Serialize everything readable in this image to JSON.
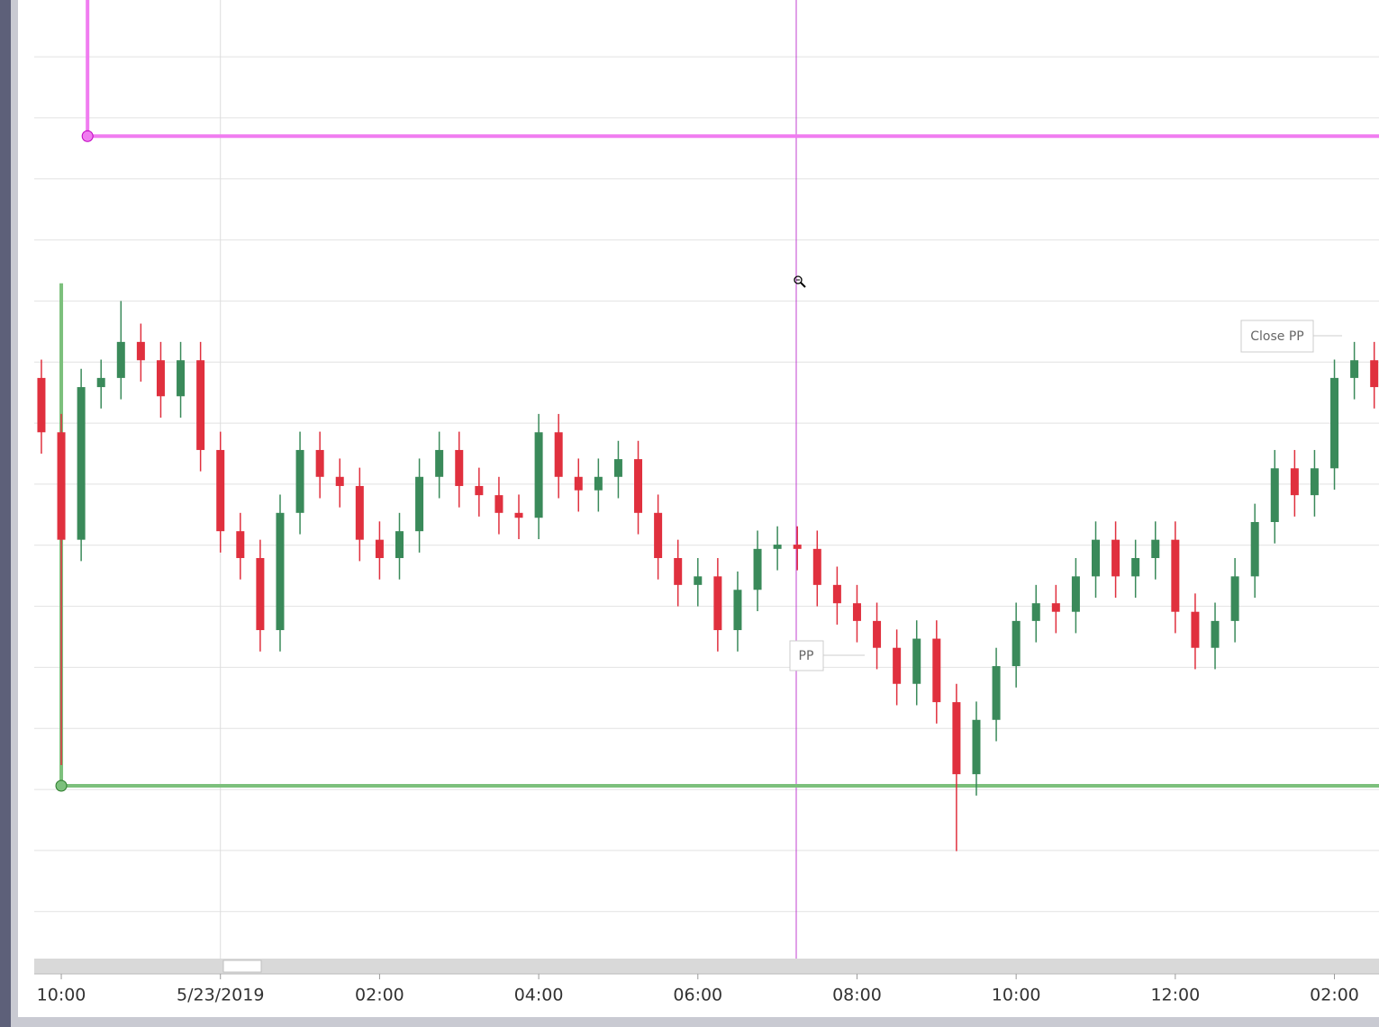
{
  "chart_data": {
    "type": "candlestick",
    "up_color": "#3a8a5a",
    "down_color": "#e0303e",
    "grid": true,
    "xlim": [
      -0.34,
      16.56
    ],
    "ylim": [
      0.23,
      15.93
    ],
    "xticks": [
      {
        "value": 0,
        "label": "10:00"
      },
      {
        "value": 2,
        "label": "5/23/2019"
      },
      {
        "value": 4,
        "label": "02:00"
      },
      {
        "value": 6,
        "label": "04:00"
      },
      {
        "value": 8,
        "label": "06:00"
      },
      {
        "value": 10,
        "label": "08:00"
      },
      {
        "value": 12,
        "label": "10:00"
      },
      {
        "value": 14,
        "label": "12:00"
      },
      {
        "value": 16,
        "label": "02:00"
      }
    ],
    "yticks": [
      1,
      2,
      3,
      4,
      5,
      6,
      7,
      8,
      9,
      10,
      11,
      12,
      13,
      14,
      15
    ],
    "x": [
      -0.25,
      0,
      0.25,
      0.5,
      0.75,
      1,
      1.25,
      1.5,
      1.75,
      2,
      2.25,
      2.5,
      2.75,
      3,
      3.25,
      3.5,
      3.75,
      4,
      4.25,
      4.5,
      4.75,
      5,
      5.25,
      5.5,
      5.75,
      6,
      6.25,
      6.5,
      6.75,
      7,
      7.25,
      7.5,
      7.75,
      8,
      8.25,
      8.5,
      8.75,
      9,
      9.25,
      9.5,
      9.75,
      10,
      10.25,
      10.5,
      10.75,
      11,
      11.25,
      11.5,
      11.75,
      12,
      12.25,
      12.5,
      12.75,
      13,
      13.25,
      13.5,
      13.75,
      14,
      14.25,
      14.5,
      14.75,
      15,
      15.25,
      15.5,
      15.75,
      16,
      16.25,
      16.5
    ],
    "open": [
      9.74,
      8.85,
      7.09,
      9.59,
      9.74,
      10.33,
      10.03,
      9.44,
      10.03,
      8.56,
      7.23,
      6.79,
      5.61,
      7.53,
      8.56,
      8.12,
      7.97,
      7.09,
      6.79,
      7.23,
      8.12,
      8.56,
      7.97,
      7.82,
      7.53,
      7.45,
      8.85,
      8.12,
      7.9,
      8.12,
      8.41,
      7.53,
      6.79,
      6.35,
      6.49,
      5.61,
      6.27,
      6.94,
      7.01,
      6.94,
      6.35,
      6.05,
      5.76,
      5.32,
      4.73,
      5.47,
      4.43,
      3.25,
      4.14,
      5.02,
      5.76,
      6.05,
      5.91,
      6.49,
      7.09,
      6.49,
      6.79,
      7.09,
      5.91,
      5.32,
      5.76,
      6.49,
      7.38,
      8.26,
      7.82,
      8.26,
      9.74,
      10.03
    ],
    "high": [
      10.04,
      9.15,
      9.89,
      10.04,
      11.0,
      10.63,
      10.33,
      10.33,
      10.33,
      8.86,
      7.53,
      7.09,
      7.83,
      8.86,
      8.86,
      8.42,
      8.27,
      7.39,
      7.53,
      8.42,
      8.86,
      8.86,
      8.27,
      8.12,
      7.83,
      9.15,
      9.15,
      8.42,
      8.42,
      8.71,
      8.71,
      7.83,
      7.09,
      6.79,
      6.79,
      6.57,
      7.24,
      7.31,
      7.31,
      7.24,
      6.65,
      6.35,
      6.06,
      5.62,
      5.77,
      5.77,
      4.73,
      4.44,
      5.32,
      6.06,
      6.35,
      6.35,
      6.79,
      7.39,
      7.39,
      7.09,
      7.39,
      7.39,
      6.21,
      6.06,
      6.79,
      7.68,
      8.56,
      8.56,
      8.56,
      10.04,
      10.33,
      10.33
    ],
    "low": [
      8.5,
      3.4,
      6.74,
      9.24,
      9.39,
      9.68,
      9.09,
      9.09,
      8.21,
      6.88,
      6.44,
      5.26,
      5.26,
      7.18,
      7.77,
      7.62,
      6.74,
      6.44,
      6.44,
      6.88,
      7.77,
      7.62,
      7.47,
      7.18,
      7.1,
      7.1,
      7.77,
      7.55,
      7.55,
      7.77,
      7.18,
      6.44,
      6.0,
      6.0,
      5.26,
      5.26,
      5.92,
      6.59,
      6.59,
      6.0,
      5.7,
      5.41,
      4.97,
      4.38,
      4.38,
      4.08,
      1.99,
      2.9,
      3.79,
      4.67,
      5.41,
      5.56,
      5.56,
      6.14,
      6.14,
      6.14,
      6.44,
      5.56,
      4.97,
      4.97,
      5.41,
      6.14,
      7.03,
      7.47,
      7.47,
      7.91,
      9.39,
      9.24
    ],
    "close": [
      8.85,
      7.09,
      9.59,
      9.74,
      10.33,
      10.03,
      9.44,
      10.03,
      8.56,
      7.23,
      6.79,
      5.61,
      7.53,
      8.56,
      8.12,
      7.97,
      7.09,
      6.79,
      7.23,
      8.12,
      8.56,
      7.97,
      7.82,
      7.53,
      7.45,
      8.85,
      8.12,
      7.9,
      8.12,
      8.41,
      7.53,
      6.79,
      6.35,
      6.49,
      5.61,
      6.27,
      6.94,
      7.01,
      6.94,
      6.35,
      6.05,
      5.76,
      5.32,
      4.73,
      5.47,
      4.43,
      3.25,
      4.14,
      5.02,
      5.76,
      6.05,
      5.91,
      6.49,
      7.09,
      6.49,
      6.79,
      7.09,
      5.91,
      5.32,
      5.76,
      6.49,
      7.38,
      8.26,
      7.82,
      8.26,
      9.74,
      10.03,
      9.59
    ],
    "levels": [
      {
        "color": "#f07cf0",
        "start": 0.33,
        "value": 13.7
      },
      {
        "color": "#7cc07c",
        "start": 0,
        "value": 3.06
      }
    ],
    "annotations": [
      "PP",
      "Close PP"
    ]
  }
}
